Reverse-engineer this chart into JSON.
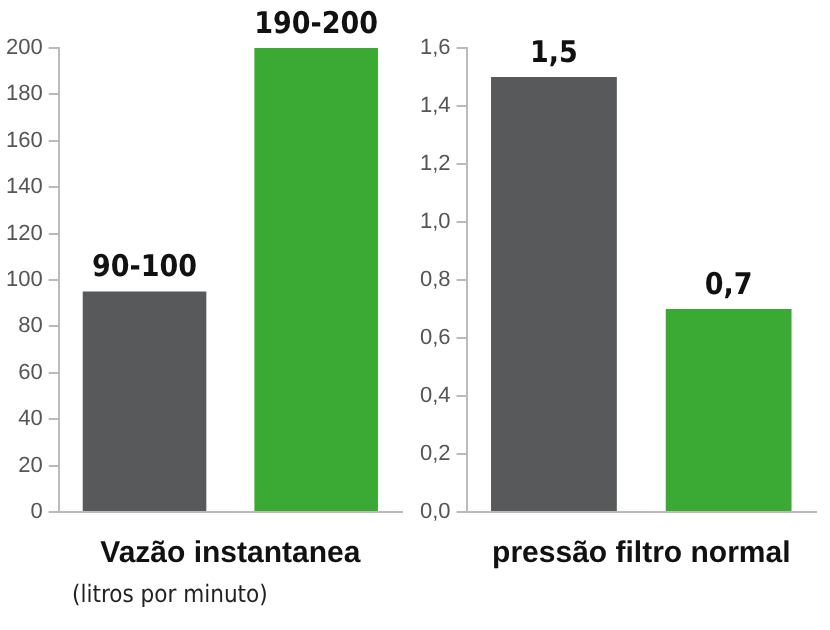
{
  "chart_data": [
    {
      "type": "bar",
      "xlabel": "Vazão instantanea",
      "annotations": [
        "(litros por minuto)"
      ],
      "categories": [
        null,
        null
      ],
      "values": [
        95,
        200
      ],
      "colors": [
        "#58595b",
        "#3aaa35"
      ],
      "value_labels": [
        "90-100",
        "190-200"
      ],
      "ylim": [
        0,
        200
      ],
      "yticks": [
        0,
        20,
        40,
        60,
        80,
        100,
        120,
        140,
        160,
        180,
        200
      ],
      "tick_labels": "y"
    },
    {
      "type": "bar",
      "xlabel": "pressão filtro normal",
      "categories": [
        null,
        null
      ],
      "values": [
        1.5,
        0.7
      ],
      "colors": [
        "#58595b",
        "#3aaa35"
      ],
      "value_labels": [
        "1,5",
        "0,7"
      ],
      "ylim": [
        0,
        1.6
      ],
      "yticks": [
        {
          "value": 0,
          "label": "0,0"
        },
        {
          "value": 0.2,
          "label": "0,2"
        },
        {
          "value": 0.4,
          "label": "0,4"
        },
        {
          "value": 0.6,
          "label": "0,6"
        },
        {
          "value": 0.8,
          "label": "0,8"
        },
        {
          "value": 1,
          "label": "1,0"
        },
        {
          "value": 1.2,
          "label": "1,2"
        },
        {
          "value": 1.4,
          "label": "1,4"
        },
        {
          "value": 1.6,
          "label": "1,6"
        }
      ],
      "tick_labels": "y"
    }
  ]
}
